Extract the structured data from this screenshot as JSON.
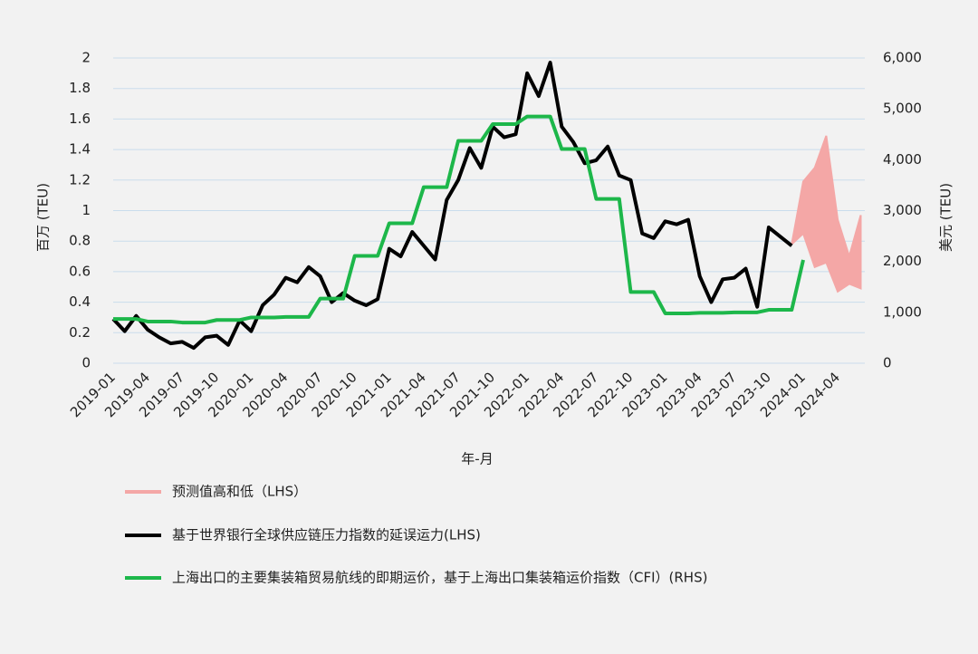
{
  "chart_data": {
    "type": "line",
    "xlabel": "年-月",
    "ylabel": "百万 (TEU)",
    "y2label": "美元 (TEU)",
    "categories": [
      "2019-01",
      null,
      null,
      "2019-04",
      null,
      null,
      "2019-07",
      null,
      null,
      "2019-10",
      null,
      null,
      "2020-01",
      null,
      null,
      "2020-04",
      null,
      null,
      "2020-07",
      null,
      null,
      "2020-10",
      null,
      null,
      "2021-01",
      null,
      null,
      "2021-04",
      null,
      null,
      "2021-07",
      null,
      null,
      "2021-10",
      null,
      null,
      "2022-01",
      null,
      null,
      "2022-04",
      null,
      null,
      "2022-07",
      null,
      null,
      "2022-10",
      null,
      null,
      "2023-01",
      null,
      null,
      "2023-04",
      null,
      null,
      "2023-07",
      null,
      null,
      "2023-10",
      null,
      null,
      "2024-01",
      null,
      null,
      "2024-04",
      null,
      null
    ],
    "series": [
      {
        "name": "预测值高和低（LHS）",
        "color": "#f4a7a6",
        "kind": "band",
        "high": [
          null,
          null,
          null,
          null,
          null,
          null,
          null,
          null,
          null,
          null,
          null,
          null,
          null,
          null,
          null,
          null,
          null,
          null,
          null,
          null,
          null,
          null,
          null,
          null,
          null,
          null,
          null,
          null,
          null,
          null,
          null,
          null,
          null,
          null,
          null,
          null,
          null,
          null,
          null,
          null,
          null,
          null,
          null,
          null,
          null,
          null,
          null,
          null,
          null,
          null,
          null,
          null,
          null,
          null,
          null,
          null,
          null,
          null,
          null,
          0.78,
          1.19,
          1.28,
          1.49,
          0.94,
          0.7,
          0.97
        ],
        "low": [
          null,
          null,
          null,
          null,
          null,
          null,
          null,
          null,
          null,
          null,
          null,
          null,
          null,
          null,
          null,
          null,
          null,
          null,
          null,
          null,
          null,
          null,
          null,
          null,
          null,
          null,
          null,
          null,
          null,
          null,
          null,
          null,
          null,
          null,
          null,
          null,
          null,
          null,
          null,
          null,
          null,
          null,
          null,
          null,
          null,
          null,
          null,
          null,
          null,
          null,
          null,
          null,
          null,
          null,
          null,
          null,
          null,
          null,
          null,
          0.78,
          0.85,
          0.63,
          0.66,
          0.47,
          0.52,
          0.49
        ]
      },
      {
        "name": "基于世界银行全球供应链压力指数的延误运力(LHS)",
        "color": "#000000",
        "values": [
          0.29,
          0.21,
          0.31,
          0.22,
          0.17,
          0.13,
          0.14,
          0.1,
          0.17,
          0.18,
          0.12,
          0.28,
          0.21,
          0.38,
          0.45,
          0.56,
          0.53,
          0.63,
          0.57,
          0.4,
          0.46,
          0.41,
          0.38,
          0.42,
          0.75,
          0.7,
          0.86,
          0.77,
          0.68,
          1.07,
          1.2,
          1.41,
          1.28,
          1.55,
          1.48,
          1.5,
          1.9,
          1.75,
          1.97,
          1.55,
          1.45,
          1.31,
          1.33,
          1.42,
          1.23,
          1.2,
          0.85,
          0.82,
          0.93,
          0.91,
          0.94,
          0.57,
          0.4,
          0.55,
          0.56,
          0.62,
          0.37,
          0.89,
          0.83,
          0.77,
          null,
          null,
          null,
          null,
          null,
          null
        ]
      },
      {
        "name": "上海出口的主要集装箱贸易航线的即期运价，基于上海出口集装箱运价指数（CFI）(RHS)",
        "color": "#1db74a",
        "axis": "y2",
        "values": [
          870,
          870,
          870,
          820,
          820,
          820,
          800,
          800,
          800,
          850,
          850,
          850,
          900,
          900,
          900,
          910,
          910,
          910,
          1270,
          1270,
          1270,
          2110,
          2110,
          2110,
          2750,
          2750,
          2750,
          3460,
          3460,
          3460,
          4370,
          4370,
          4370,
          4700,
          4700,
          4700,
          4850,
          4850,
          4850,
          4210,
          4210,
          4210,
          3230,
          3230,
          3230,
          1400,
          1400,
          1400,
          980,
          980,
          980,
          990,
          990,
          990,
          1000,
          1000,
          1000,
          1050,
          1050,
          1050,
          2030,
          null,
          null,
          null,
          null,
          null
        ]
      }
    ],
    "ylim": [
      0,
      2
    ],
    "yticks": [
      0,
      0.2,
      0.4,
      0.6,
      0.8,
      1,
      1.2,
      1.4,
      1.6,
      1.8,
      2
    ],
    "y2lim": [
      0,
      6000
    ],
    "y2ticks": [
      0,
      {
        "value": 1000,
        "label": "1,000"
      },
      {
        "value": 2000,
        "label": "2,000"
      },
      {
        "value": 3000,
        "label": "3,000"
      },
      {
        "value": 4000,
        "label": "4,000"
      },
      {
        "value": 5000,
        "label": "5,000"
      },
      {
        "value": 6000,
        "label": "6,000"
      }
    ],
    "grid": true
  }
}
